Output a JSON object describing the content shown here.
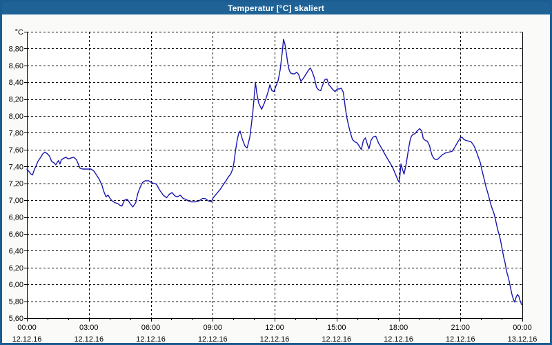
{
  "window": {
    "title": "Temperatur [°C] skaliert",
    "colors": {
      "title_bar": "#1e6296",
      "border": "#1b5d92",
      "content_background": "#fafbf8",
      "plot_background": "#ffffff",
      "grid": "#000000",
      "axis": "#000000",
      "text": "#000000"
    }
  },
  "chart_data": {
    "type": "line",
    "title": "Temperatur [°C] skaliert",
    "legend": "none",
    "grid": {
      "style": "dashed",
      "color": "#000000"
    },
    "y_axis": {
      "unit_label": "°C",
      "min": 5.6,
      "max": 9.0,
      "grid_step": 0.2,
      "ticks": [
        {
          "v": 8.8,
          "label": "8,80"
        },
        {
          "v": 8.6,
          "label": "8,60"
        },
        {
          "v": 8.4,
          "label": "8,40"
        },
        {
          "v": 8.2,
          "label": "8,20"
        },
        {
          "v": 8.0,
          "label": "8,00"
        },
        {
          "v": 7.8,
          "label": "7,80"
        },
        {
          "v": 7.6,
          "label": "7,60"
        },
        {
          "v": 7.4,
          "label": "7,40"
        },
        {
          "v": 7.2,
          "label": "7,20"
        },
        {
          "v": 7.0,
          "label": "7,00"
        },
        {
          "v": 6.8,
          "label": "6,80"
        },
        {
          "v": 6.6,
          "label": "6,60"
        },
        {
          "v": 6.4,
          "label": "6,40"
        },
        {
          "v": 6.2,
          "label": "6,20"
        },
        {
          "v": 6.0,
          "label": "6,00"
        },
        {
          "v": 5.8,
          "label": "5,80"
        },
        {
          "v": 5.6,
          "label": "5,60"
        }
      ]
    },
    "x_axis": {
      "min_hours": 0,
      "max_hours": 24,
      "minor_tick_hours": 1,
      "major_ticks": [
        {
          "h": 0,
          "time": "00:00",
          "date": "12.12.16"
        },
        {
          "h": 3,
          "time": "03:00",
          "date": "12.12.16"
        },
        {
          "h": 6,
          "time": "06:00",
          "date": "12.12.16"
        },
        {
          "h": 9,
          "time": "09:00",
          "date": "12.12.16"
        },
        {
          "h": 12,
          "time": "12:00",
          "date": "12.12.16"
        },
        {
          "h": 15,
          "time": "15:00",
          "date": "12.12.16"
        },
        {
          "h": 18,
          "time": "18:00",
          "date": "12.12.16"
        },
        {
          "h": 21,
          "time": "21:00",
          "date": "12.12.16"
        },
        {
          "h": 24,
          "time": "00:00",
          "date": "13.12.16"
        }
      ]
    },
    "series": [
      {
        "name": "Temperatur",
        "color": "#1a16ad",
        "points": [
          [
            0,
            7.37
          ],
          [
            0.2,
            7.31
          ],
          [
            0.27,
            7.3
          ],
          [
            0.37,
            7.37
          ],
          [
            0.43,
            7.4
          ],
          [
            0.53,
            7.46
          ],
          [
            0.67,
            7.51
          ],
          [
            0.77,
            7.55
          ],
          [
            0.87,
            7.57
          ],
          [
            1,
            7.55
          ],
          [
            1.1,
            7.52
          ],
          [
            1.2,
            7.46
          ],
          [
            1.33,
            7.44
          ],
          [
            1.4,
            7.42
          ],
          [
            1.47,
            7.45
          ],
          [
            1.53,
            7.47
          ],
          [
            1.6,
            7.43
          ],
          [
            1.67,
            7.48
          ],
          [
            1.8,
            7.5
          ],
          [
            1.9,
            7.51
          ],
          [
            2,
            7.49
          ],
          [
            2.13,
            7.5
          ],
          [
            2.27,
            7.51
          ],
          [
            2.4,
            7.48
          ],
          [
            2.47,
            7.44
          ],
          [
            2.57,
            7.38
          ],
          [
            2.7,
            7.37
          ],
          [
            2.9,
            7.37
          ],
          [
            3.1,
            7.37
          ],
          [
            3.23,
            7.35
          ],
          [
            3.37,
            7.3
          ],
          [
            3.5,
            7.25
          ],
          [
            3.63,
            7.18
          ],
          [
            3.73,
            7.1
          ],
          [
            3.83,
            7.04
          ],
          [
            3.93,
            7.06
          ],
          [
            4.03,
            7.02
          ],
          [
            4.13,
            6.99
          ],
          [
            4.27,
            6.97
          ],
          [
            4.4,
            6.96
          ],
          [
            4.5,
            6.94
          ],
          [
            4.6,
            6.93
          ],
          [
            4.73,
            7.0
          ],
          [
            4.87,
            7.01
          ],
          [
            5.0,
            6.96
          ],
          [
            5.13,
            6.92
          ],
          [
            5.27,
            6.97
          ],
          [
            5.37,
            7.08
          ],
          [
            5.5,
            7.16
          ],
          [
            5.6,
            7.21
          ],
          [
            5.73,
            7.23
          ],
          [
            5.9,
            7.23
          ],
          [
            6.03,
            7.21
          ],
          [
            6.27,
            7.19
          ],
          [
            6.43,
            7.12
          ],
          [
            6.6,
            7.06
          ],
          [
            6.77,
            7.03
          ],
          [
            6.9,
            7.07
          ],
          [
            7.03,
            7.09
          ],
          [
            7.17,
            7.05
          ],
          [
            7.3,
            7.04
          ],
          [
            7.43,
            7.06
          ],
          [
            7.57,
            7.02
          ],
          [
            7.7,
            7.01
          ],
          [
            7.83,
            6.99
          ],
          [
            7.97,
            6.98
          ],
          [
            8.17,
            6.98
          ],
          [
            8.33,
            6.99
          ],
          [
            8.5,
            7.02
          ],
          [
            8.63,
            7.02
          ],
          [
            8.8,
            6.99
          ],
          [
            8.93,
            6.98
          ],
          [
            9.03,
            7.03
          ],
          [
            9.2,
            7.08
          ],
          [
            9.37,
            7.13
          ],
          [
            9.53,
            7.19
          ],
          [
            9.67,
            7.24
          ],
          [
            9.77,
            7.28
          ],
          [
            9.87,
            7.31
          ],
          [
            9.97,
            7.37
          ],
          [
            10.03,
            7.45
          ],
          [
            10.1,
            7.58
          ],
          [
            10.2,
            7.73
          ],
          [
            10.27,
            7.8
          ],
          [
            10.33,
            7.82
          ],
          [
            10.43,
            7.73
          ],
          [
            10.57,
            7.64
          ],
          [
            10.67,
            7.62
          ],
          [
            10.8,
            7.75
          ],
          [
            10.93,
            8.01
          ],
          [
            11.0,
            8.2
          ],
          [
            11.07,
            8.4
          ],
          [
            11.13,
            8.28
          ],
          [
            11.23,
            8.15
          ],
          [
            11.37,
            8.08
          ],
          [
            11.5,
            8.15
          ],
          [
            11.6,
            8.22
          ],
          [
            11.7,
            8.3
          ],
          [
            11.77,
            8.37
          ],
          [
            11.87,
            8.3
          ],
          [
            11.97,
            8.29
          ],
          [
            12.07,
            8.36
          ],
          [
            12.17,
            8.42
          ],
          [
            12.27,
            8.55
          ],
          [
            12.37,
            8.76
          ],
          [
            12.43,
            8.91
          ],
          [
            12.5,
            8.85
          ],
          [
            12.57,
            8.74
          ],
          [
            12.63,
            8.64
          ],
          [
            12.7,
            8.55
          ],
          [
            12.77,
            8.51
          ],
          [
            12.87,
            8.5
          ],
          [
            12.97,
            8.5
          ],
          [
            13.07,
            8.52
          ],
          [
            13.17,
            8.49
          ],
          [
            13.27,
            8.41
          ],
          [
            13.4,
            8.45
          ],
          [
            13.53,
            8.5
          ],
          [
            13.63,
            8.54
          ],
          [
            13.73,
            8.57
          ],
          [
            13.83,
            8.52
          ],
          [
            13.93,
            8.45
          ],
          [
            14.03,
            8.34
          ],
          [
            14.13,
            8.31
          ],
          [
            14.23,
            8.3
          ],
          [
            14.33,
            8.37
          ],
          [
            14.43,
            8.43
          ],
          [
            14.53,
            8.44
          ],
          [
            14.63,
            8.37
          ],
          [
            14.73,
            8.34
          ],
          [
            14.83,
            8.31
          ],
          [
            14.93,
            8.29
          ],
          [
            15.03,
            8.32
          ],
          [
            15.13,
            8.32
          ],
          [
            15.23,
            8.33
          ],
          [
            15.33,
            8.28
          ],
          [
            15.43,
            8.09
          ],
          [
            15.5,
            7.98
          ],
          [
            15.57,
            7.9
          ],
          [
            15.67,
            7.8
          ],
          [
            15.77,
            7.72
          ],
          [
            15.9,
            7.69
          ],
          [
            16.0,
            7.68
          ],
          [
            16.1,
            7.64
          ],
          [
            16.2,
            7.6
          ],
          [
            16.3,
            7.71
          ],
          [
            16.4,
            7.74
          ],
          [
            16.5,
            7.66
          ],
          [
            16.57,
            7.61
          ],
          [
            16.67,
            7.71
          ],
          [
            16.77,
            7.75
          ],
          [
            16.9,
            7.76
          ],
          [
            17.03,
            7.68
          ],
          [
            17.2,
            7.61
          ],
          [
            17.33,
            7.55
          ],
          [
            17.5,
            7.48
          ],
          [
            17.67,
            7.41
          ],
          [
            17.77,
            7.36
          ],
          [
            17.87,
            7.3
          ],
          [
            17.97,
            7.24
          ],
          [
            18.04,
            7.21
          ],
          [
            18.12,
            7.43
          ],
          [
            18.2,
            7.36
          ],
          [
            18.27,
            7.31
          ],
          [
            18.37,
            7.43
          ],
          [
            18.43,
            7.52
          ],
          [
            18.5,
            7.63
          ],
          [
            18.57,
            7.72
          ],
          [
            18.63,
            7.76
          ],
          [
            18.7,
            7.78
          ],
          [
            18.8,
            7.79
          ],
          [
            18.9,
            7.82
          ],
          [
            19.03,
            7.85
          ],
          [
            19.13,
            7.82
          ],
          [
            19.2,
            7.73
          ],
          [
            19.3,
            7.71
          ],
          [
            19.4,
            7.7
          ],
          [
            19.5,
            7.65
          ],
          [
            19.57,
            7.58
          ],
          [
            19.63,
            7.53
          ],
          [
            19.73,
            7.49
          ],
          [
            19.87,
            7.48
          ],
          [
            20.0,
            7.51
          ],
          [
            20.13,
            7.54
          ],
          [
            20.27,
            7.56
          ],
          [
            20.43,
            7.57
          ],
          [
            20.6,
            7.58
          ],
          [
            20.73,
            7.63
          ],
          [
            20.87,
            7.69
          ],
          [
            21.0,
            7.74
          ],
          [
            21.07,
            7.75
          ],
          [
            21.17,
            7.72
          ],
          [
            21.27,
            7.71
          ],
          [
            21.43,
            7.7
          ],
          [
            21.53,
            7.69
          ],
          [
            21.67,
            7.64
          ],
          [
            21.77,
            7.58
          ],
          [
            21.87,
            7.51
          ],
          [
            21.97,
            7.44
          ],
          [
            22.03,
            7.37
          ],
          [
            22.1,
            7.3
          ],
          [
            22.17,
            7.23
          ],
          [
            22.23,
            7.17
          ],
          [
            22.3,
            7.11
          ],
          [
            22.37,
            7.05
          ],
          [
            22.43,
            6.99
          ],
          [
            22.5,
            6.93
          ],
          [
            22.57,
            6.88
          ],
          [
            22.63,
            6.84
          ],
          [
            22.7,
            6.77
          ],
          [
            22.77,
            6.69
          ],
          [
            22.83,
            6.63
          ],
          [
            22.9,
            6.57
          ],
          [
            22.97,
            6.49
          ],
          [
            23.03,
            6.41
          ],
          [
            23.1,
            6.32
          ],
          [
            23.17,
            6.25
          ],
          [
            23.23,
            6.16
          ],
          [
            23.3,
            6.1
          ],
          [
            23.37,
            6.03
          ],
          [
            23.43,
            5.96
          ],
          [
            23.5,
            5.88
          ],
          [
            23.57,
            5.82
          ],
          [
            23.63,
            5.79
          ],
          [
            23.7,
            5.85
          ],
          [
            23.77,
            5.88
          ],
          [
            23.83,
            5.86
          ],
          [
            23.9,
            5.8
          ],
          [
            23.97,
            5.76
          ]
        ]
      }
    ]
  }
}
